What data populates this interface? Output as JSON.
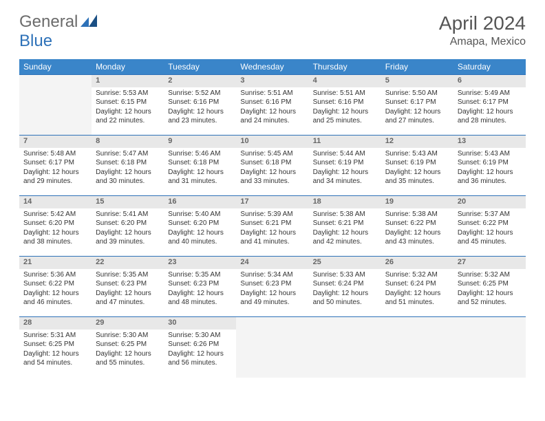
{
  "brand": {
    "part1": "General",
    "part2": "Blue"
  },
  "title": "April 2024",
  "location": "Amapa, Mexico",
  "header_bg": "#3a85c9",
  "header_fg": "#ffffff",
  "daynum_bg": "#e8e8e8",
  "empty_bg": "#f4f4f4",
  "border_color": "#2d71b8",
  "text_color": "#333333",
  "day_headers": [
    "Sunday",
    "Monday",
    "Tuesday",
    "Wednesday",
    "Thursday",
    "Friday",
    "Saturday"
  ],
  "weeks": [
    [
      {
        "n": "",
        "sunrise": "",
        "sunset": "",
        "daylight": ""
      },
      {
        "n": "1",
        "sunrise": "Sunrise: 5:53 AM",
        "sunset": "Sunset: 6:15 PM",
        "daylight": "Daylight: 12 hours and 22 minutes."
      },
      {
        "n": "2",
        "sunrise": "Sunrise: 5:52 AM",
        "sunset": "Sunset: 6:16 PM",
        "daylight": "Daylight: 12 hours and 23 minutes."
      },
      {
        "n": "3",
        "sunrise": "Sunrise: 5:51 AM",
        "sunset": "Sunset: 6:16 PM",
        "daylight": "Daylight: 12 hours and 24 minutes."
      },
      {
        "n": "4",
        "sunrise": "Sunrise: 5:51 AM",
        "sunset": "Sunset: 6:16 PM",
        "daylight": "Daylight: 12 hours and 25 minutes."
      },
      {
        "n": "5",
        "sunrise": "Sunrise: 5:50 AM",
        "sunset": "Sunset: 6:17 PM",
        "daylight": "Daylight: 12 hours and 27 minutes."
      },
      {
        "n": "6",
        "sunrise": "Sunrise: 5:49 AM",
        "sunset": "Sunset: 6:17 PM",
        "daylight": "Daylight: 12 hours and 28 minutes."
      }
    ],
    [
      {
        "n": "7",
        "sunrise": "Sunrise: 5:48 AM",
        "sunset": "Sunset: 6:17 PM",
        "daylight": "Daylight: 12 hours and 29 minutes."
      },
      {
        "n": "8",
        "sunrise": "Sunrise: 5:47 AM",
        "sunset": "Sunset: 6:18 PM",
        "daylight": "Daylight: 12 hours and 30 minutes."
      },
      {
        "n": "9",
        "sunrise": "Sunrise: 5:46 AM",
        "sunset": "Sunset: 6:18 PM",
        "daylight": "Daylight: 12 hours and 31 minutes."
      },
      {
        "n": "10",
        "sunrise": "Sunrise: 5:45 AM",
        "sunset": "Sunset: 6:18 PM",
        "daylight": "Daylight: 12 hours and 33 minutes."
      },
      {
        "n": "11",
        "sunrise": "Sunrise: 5:44 AM",
        "sunset": "Sunset: 6:19 PM",
        "daylight": "Daylight: 12 hours and 34 minutes."
      },
      {
        "n": "12",
        "sunrise": "Sunrise: 5:43 AM",
        "sunset": "Sunset: 6:19 PM",
        "daylight": "Daylight: 12 hours and 35 minutes."
      },
      {
        "n": "13",
        "sunrise": "Sunrise: 5:43 AM",
        "sunset": "Sunset: 6:19 PM",
        "daylight": "Daylight: 12 hours and 36 minutes."
      }
    ],
    [
      {
        "n": "14",
        "sunrise": "Sunrise: 5:42 AM",
        "sunset": "Sunset: 6:20 PM",
        "daylight": "Daylight: 12 hours and 38 minutes."
      },
      {
        "n": "15",
        "sunrise": "Sunrise: 5:41 AM",
        "sunset": "Sunset: 6:20 PM",
        "daylight": "Daylight: 12 hours and 39 minutes."
      },
      {
        "n": "16",
        "sunrise": "Sunrise: 5:40 AM",
        "sunset": "Sunset: 6:20 PM",
        "daylight": "Daylight: 12 hours and 40 minutes."
      },
      {
        "n": "17",
        "sunrise": "Sunrise: 5:39 AM",
        "sunset": "Sunset: 6:21 PM",
        "daylight": "Daylight: 12 hours and 41 minutes."
      },
      {
        "n": "18",
        "sunrise": "Sunrise: 5:38 AM",
        "sunset": "Sunset: 6:21 PM",
        "daylight": "Daylight: 12 hours and 42 minutes."
      },
      {
        "n": "19",
        "sunrise": "Sunrise: 5:38 AM",
        "sunset": "Sunset: 6:22 PM",
        "daylight": "Daylight: 12 hours and 43 minutes."
      },
      {
        "n": "20",
        "sunrise": "Sunrise: 5:37 AM",
        "sunset": "Sunset: 6:22 PM",
        "daylight": "Daylight: 12 hours and 45 minutes."
      }
    ],
    [
      {
        "n": "21",
        "sunrise": "Sunrise: 5:36 AM",
        "sunset": "Sunset: 6:22 PM",
        "daylight": "Daylight: 12 hours and 46 minutes."
      },
      {
        "n": "22",
        "sunrise": "Sunrise: 5:35 AM",
        "sunset": "Sunset: 6:23 PM",
        "daylight": "Daylight: 12 hours and 47 minutes."
      },
      {
        "n": "23",
        "sunrise": "Sunrise: 5:35 AM",
        "sunset": "Sunset: 6:23 PM",
        "daylight": "Daylight: 12 hours and 48 minutes."
      },
      {
        "n": "24",
        "sunrise": "Sunrise: 5:34 AM",
        "sunset": "Sunset: 6:23 PM",
        "daylight": "Daylight: 12 hours and 49 minutes."
      },
      {
        "n": "25",
        "sunrise": "Sunrise: 5:33 AM",
        "sunset": "Sunset: 6:24 PM",
        "daylight": "Daylight: 12 hours and 50 minutes."
      },
      {
        "n": "26",
        "sunrise": "Sunrise: 5:32 AM",
        "sunset": "Sunset: 6:24 PM",
        "daylight": "Daylight: 12 hours and 51 minutes."
      },
      {
        "n": "27",
        "sunrise": "Sunrise: 5:32 AM",
        "sunset": "Sunset: 6:25 PM",
        "daylight": "Daylight: 12 hours and 52 minutes."
      }
    ],
    [
      {
        "n": "28",
        "sunrise": "Sunrise: 5:31 AM",
        "sunset": "Sunset: 6:25 PM",
        "daylight": "Daylight: 12 hours and 54 minutes."
      },
      {
        "n": "29",
        "sunrise": "Sunrise: 5:30 AM",
        "sunset": "Sunset: 6:25 PM",
        "daylight": "Daylight: 12 hours and 55 minutes."
      },
      {
        "n": "30",
        "sunrise": "Sunrise: 5:30 AM",
        "sunset": "Sunset: 6:26 PM",
        "daylight": "Daylight: 12 hours and 56 minutes."
      },
      {
        "n": "",
        "sunrise": "",
        "sunset": "",
        "daylight": ""
      },
      {
        "n": "",
        "sunrise": "",
        "sunset": "",
        "daylight": ""
      },
      {
        "n": "",
        "sunrise": "",
        "sunset": "",
        "daylight": ""
      },
      {
        "n": "",
        "sunrise": "",
        "sunset": "",
        "daylight": ""
      }
    ]
  ]
}
